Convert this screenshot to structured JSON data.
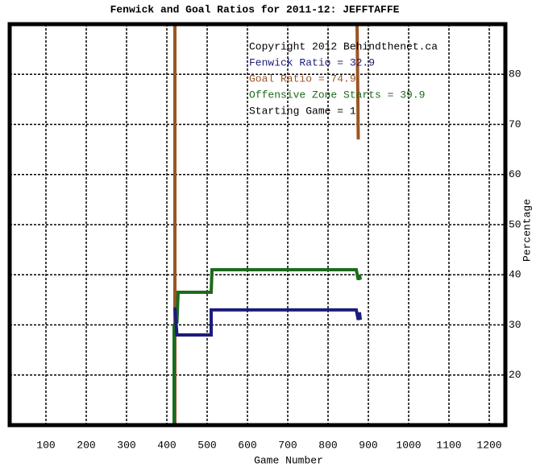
{
  "chart_data": {
    "type": "line",
    "title": "Fenwick and Goal Ratios for 2011-12: JEFFTAFFE",
    "x_label": "Game Number",
    "y_label": "Percentage",
    "xlim": [
      10,
      1240
    ],
    "ylim": [
      10,
      90
    ],
    "xticks": [
      100,
      200,
      300,
      400,
      500,
      600,
      700,
      800,
      900,
      1000,
      1100,
      1200
    ],
    "yticks": [
      20,
      30,
      40,
      50,
      60,
      70,
      80
    ],
    "grid": true,
    "y_axis_side": "right",
    "series": [
      {
        "name": "Goal Ratio",
        "color": "#9a5524",
        "x": [
          420,
          420,
          646,
          872,
          875
        ],
        "values": [
          90,
          10,
          null,
          90,
          67
        ]
      },
      {
        "name": "Offensive Zone Starts",
        "color": "#1c6b1c",
        "x": [
          418,
          418,
          425,
          428,
          510,
          512,
          870,
          875,
          878,
          880
        ],
        "values": [
          10,
          30,
          30.5,
          36.5,
          36.5,
          41,
          41,
          39,
          40,
          39
        ]
      },
      {
        "name": "Fenwick Ratio",
        "color": "#1c1c7c",
        "x": [
          420,
          425,
          510,
          510,
          870,
          875,
          878,
          880
        ],
        "values": [
          33.5,
          28,
          28,
          33,
          33,
          31,
          32.5,
          31
        ]
      }
    ],
    "annotations": [
      {
        "text": "Copyright 2012 Behindthenet.ca",
        "color": "#000000"
      },
      {
        "text": "Fenwick Ratio = 32.9",
        "color": "#1c1c7c"
      },
      {
        "text": "Goal Ratio = 74.9",
        "color": "#9a5524"
      },
      {
        "text": "Offensive Zone Starts = 39.9",
        "color": "#1c6b1c"
      },
      {
        "text": "Starting Game = 1",
        "color": "#000000"
      }
    ]
  }
}
